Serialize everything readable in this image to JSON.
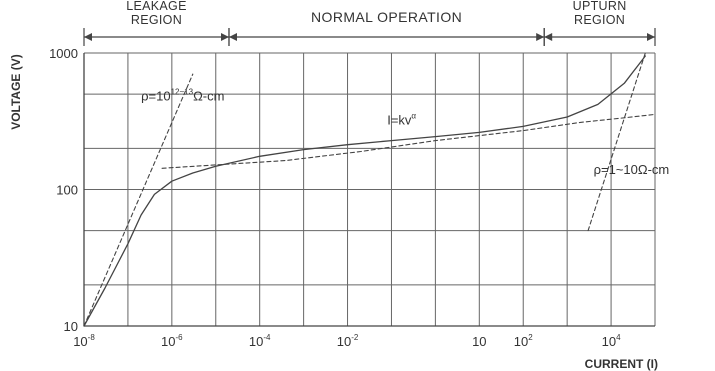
{
  "chart_data": {
    "type": "line",
    "xlabel": "CURRENT (I)",
    "ylabel": "VOLTAGE (V)",
    "x_scale": "log",
    "y_scale": "log",
    "xlim": [
      1e-08,
      100000.0
    ],
    "ylim": [
      10,
      1000
    ],
    "grid": true,
    "x_ticks": [
      {
        "base": "10",
        "exp": "-8"
      },
      {
        "base": "10",
        "exp": "-6"
      },
      {
        "base": "10",
        "exp": "-4"
      },
      {
        "base": "10",
        "exp": "-2"
      },
      {
        "base": "10",
        "exp": ""
      },
      {
        "base": "10",
        "exp": "2"
      },
      {
        "base": "10",
        "exp": "4"
      }
    ],
    "x_tick_values": [
      1e-08,
      1e-06,
      0.0001,
      0.01,
      10,
      100,
      10000
    ],
    "y_ticks": [
      "10",
      "100",
      "1000"
    ],
    "y_tick_values": [
      10,
      100,
      1000
    ],
    "regions": [
      {
        "label": [
          "LEAKAGE",
          "REGION"
        ],
        "x_from": 1e-08,
        "x_to": 2e-05
      },
      {
        "label": [
          "NORMAL OPERATION"
        ],
        "x_from": 2e-05,
        "x_to": 300
      },
      {
        "label": [
          "UPTURN",
          "REGION"
        ],
        "x_from": 300,
        "x_to": 100000.0
      }
    ],
    "series": [
      {
        "style": "solid",
        "x": [
          1e-08,
          3e-08,
          1e-07,
          2e-07,
          4e-07,
          1e-06,
          3e-06,
          1e-05,
          0.0001,
          0.001,
          0.01,
          0.1,
          1,
          10,
          100,
          1000,
          5000,
          20000,
          60000
        ],
        "y": [
          10,
          19,
          40,
          65,
          92,
          115,
          132,
          148,
          175,
          196,
          213,
          228,
          244,
          262,
          290,
          340,
          420,
          600,
          950
        ]
      },
      {
        "style": "dashed",
        "x": [
          1e-08,
          3e-06
        ],
        "y": [
          10,
          700
        ]
      },
      {
        "style": "dashed",
        "x": [
          6e-07,
          0.0004,
          0.02,
          1,
          100,
          2000,
          20000,
          100000
        ],
        "y": [
          143,
          163,
          190,
          228,
          270,
          310,
          335,
          355
        ]
      },
      {
        "style": "dashed",
        "x": [
          3000,
          60000
        ],
        "y": [
          50,
          1000
        ]
      }
    ],
    "annotations": [
      {
        "parts": [
          "ρ=10",
          "12~13",
          "Ω-cm"
        ],
        "x": 2e-07,
        "y": 450
      },
      {
        "parts": [
          "I=kv",
          "α"
        ],
        "x": 0.08,
        "y": 300
      },
      {
        "parts": [
          "ρ=1~10Ω-cm"
        ],
        "x": 4000,
        "y": 130
      }
    ]
  }
}
